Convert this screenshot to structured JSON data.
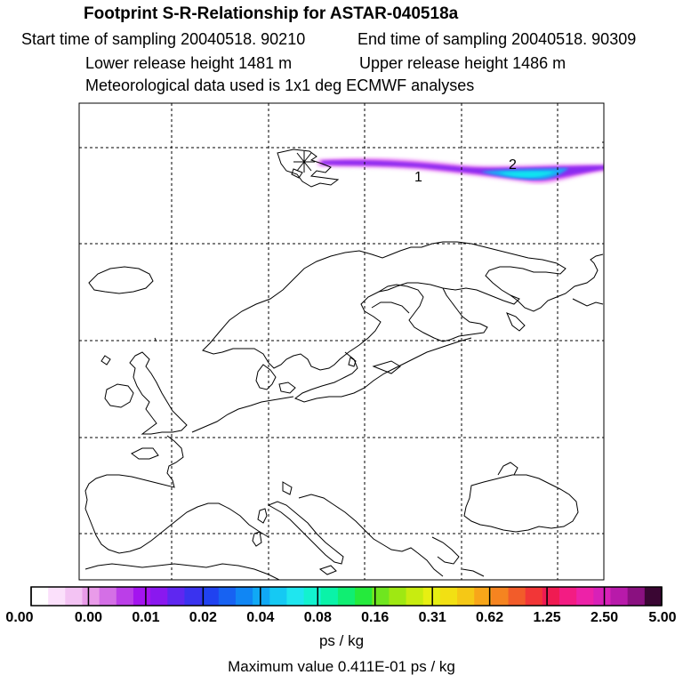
{
  "header": {
    "title": "Footprint S-R-Relationship for ASTAR-040518a",
    "start_time": "Start time of sampling 20040518. 90210",
    "end_time": "End time of sampling 20040518. 90309",
    "lower_height": "Lower release height 1481 m",
    "upper_height": "Upper release height 1486 m",
    "met_data": "Meteorological data used is 1x1 deg ECMWF analyses"
  },
  "map": {
    "plume_labels": [
      "1",
      "2"
    ],
    "release_marker": "star"
  },
  "colorbar": {
    "colors": [
      "#ffffff",
      "#fbe0fb",
      "#f3c3f3",
      "#e99be9",
      "#d46fe6",
      "#bb3ee8",
      "#a414ef",
      "#8a18ef",
      "#5f27f0",
      "#3a33ef",
      "#2042f0",
      "#1762f2",
      "#1086f4",
      "#10a9f5",
      "#15c9f3",
      "#1fe6ef",
      "#13f2cf",
      "#0af3a8",
      "#10ee72",
      "#25ea3c",
      "#6fe61f",
      "#9fe812",
      "#c8ec10",
      "#e7ef12",
      "#f2e013",
      "#f5c816",
      "#f8a619",
      "#f58420",
      "#f25c2a",
      "#f23637",
      "#f01b52",
      "#f31c83",
      "#ed22a8",
      "#d821b8",
      "#b81aaa",
      "#8a1180",
      "#3a0633"
    ],
    "ticks": [
      "0.00",
      "0.00",
      "0.01",
      "0.02",
      "0.04",
      "0.08",
      "0.16",
      "0.31",
      "0.62",
      "1.25",
      "2.50",
      "5.00"
    ],
    "units": "ps / kg",
    "max_value": "Maximum value  0.411E-01 ps / kg"
  }
}
